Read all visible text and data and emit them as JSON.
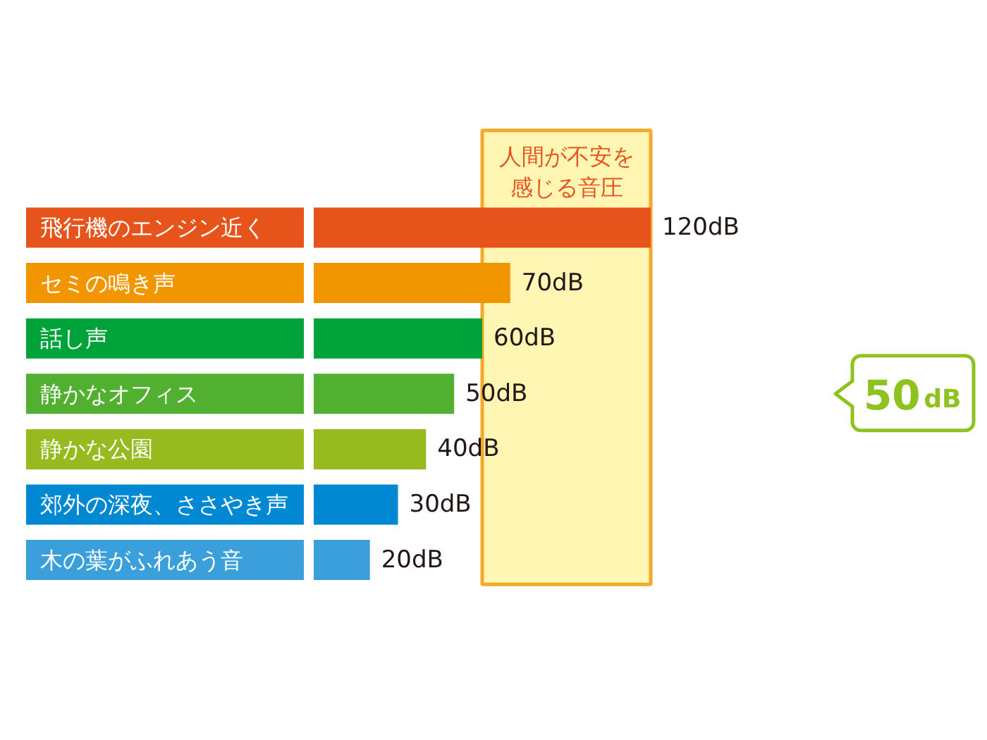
{
  "chart_data": {
    "type": "bar",
    "orientation": "horizontal",
    "categories": [
      "飛行機のエンジン近く",
      "セミの鳴き声",
      "話し声",
      "静かなオフィス",
      "静かな公園",
      "郊外の深夜、ささやき声",
      "木の葉がふれあう音"
    ],
    "values": [
      120,
      70,
      60,
      50,
      40,
      30,
      20
    ],
    "colors": [
      "#e6541b",
      "#f29600",
      "#00a23a",
      "#52b031",
      "#97bb1e",
      "#0089d2",
      "#3b9fdb"
    ],
    "value_labels": [
      "120dB",
      "70dB",
      "60dB",
      "50dB",
      "40dB",
      "30dB",
      "20dB"
    ],
    "bands": [
      {
        "axis": "x",
        "from": 60,
        "to": 120,
        "label": "人間が不安を感じる音圧",
        "color": "#fff6b4"
      }
    ],
    "annotations": [
      "50dB"
    ],
    "tick_labels": "y",
    "grid": false
  }
}
